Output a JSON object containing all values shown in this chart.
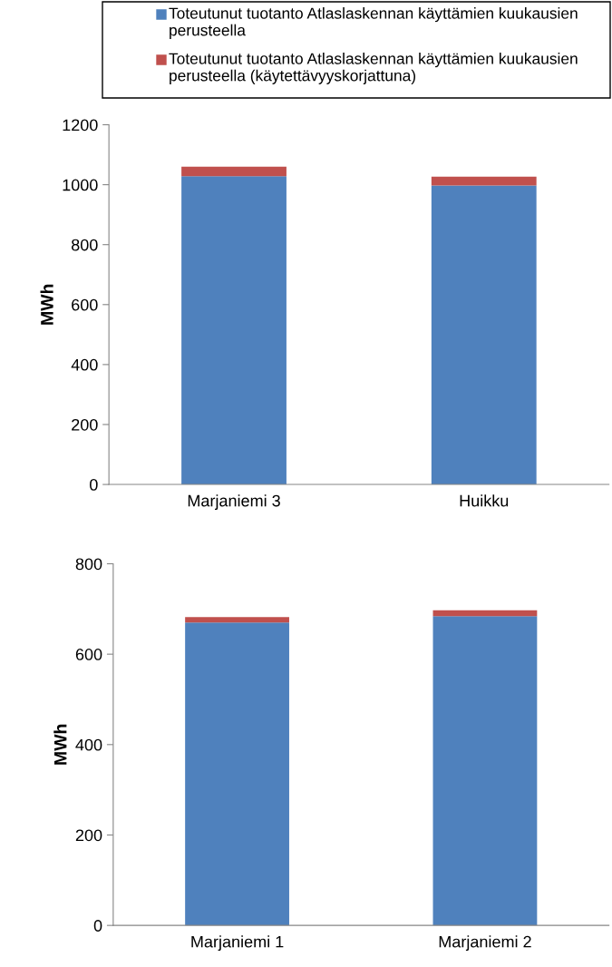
{
  "chart_data": [
    {
      "type": "bar",
      "stacked": true,
      "ylabel": "MWh",
      "categories": [
        "Marjaniemi 3",
        "Huikku"
      ],
      "ylim": [
        0,
        1200
      ],
      "yticks": [
        0,
        200,
        400,
        600,
        800,
        1000,
        1200
      ],
      "grid": false,
      "legend": "top",
      "series": [
        {
          "name": "Toteutunut tuotanto Atlaslaskennan käyttämien kuukausien perusteella",
          "color": "#4f81bd",
          "values": [
            1028,
            997
          ]
        },
        {
          "name": "Toteutunut tuotanto Atlaslaskennan käyttämien kuukausien perusteella (käytettävyyskorjattuna)",
          "color": "#c0504d",
          "values": [
            32,
            30
          ]
        }
      ]
    },
    {
      "type": "bar",
      "stacked": true,
      "ylabel": "MWh",
      "categories": [
        "Marjaniemi 1",
        "Marjaniemi 2"
      ],
      "ylim": [
        0,
        800
      ],
      "yticks": [
        0,
        200,
        400,
        600,
        800
      ],
      "grid": false,
      "series": [
        {
          "color": "#4f81bd",
          "values": [
            670,
            684
          ]
        },
        {
          "color": "#c0504d",
          "values": [
            12,
            13
          ]
        }
      ]
    }
  ]
}
